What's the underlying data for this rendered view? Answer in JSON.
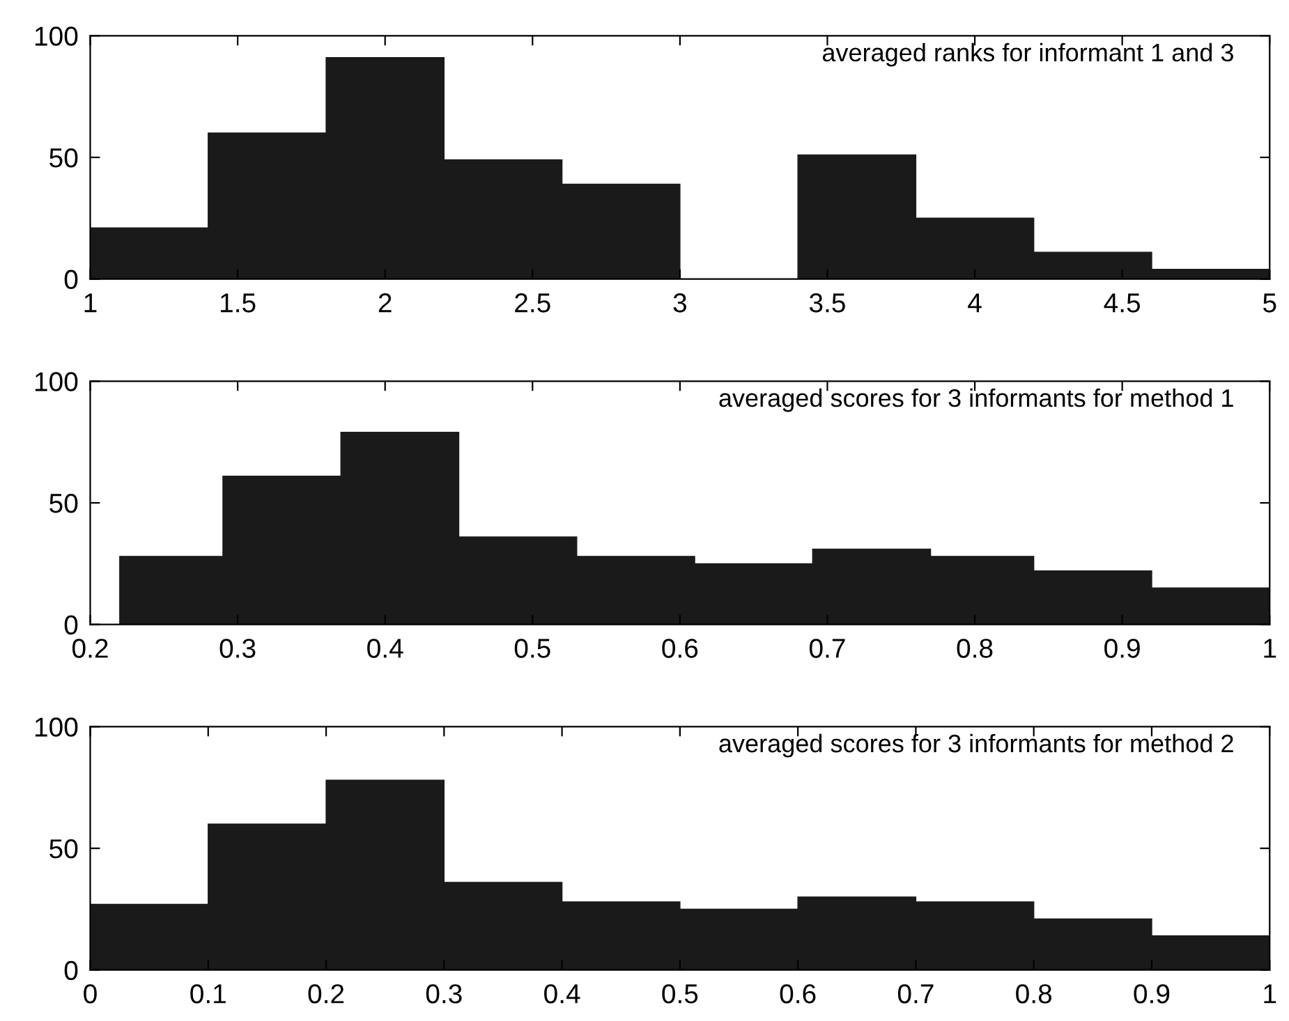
{
  "chart_data": [
    {
      "type": "histogram",
      "bins": [
        1,
        1.4,
        1.8,
        2.2,
        2.6,
        3,
        3.4,
        3.8,
        4.2,
        4.6,
        5
      ],
      "values": [
        21,
        60,
        91,
        49,
        39,
        0,
        51,
        25,
        11,
        4
      ],
      "color": "#1a1a1a",
      "xlim": [
        1,
        5
      ],
      "xticks": [
        1,
        1.5,
        2,
        2.5,
        3,
        3.5,
        4,
        4.5,
        5
      ],
      "ylim": [
        0,
        100
      ],
      "yticks": [
        0,
        50,
        100
      ],
      "annotations": [
        "averaged ranks for informant 1 and 3"
      ],
      "grid": false
    },
    {
      "type": "histogram",
      "bins": [
        0.22,
        0.29,
        0.37,
        0.45,
        0.53,
        0.61,
        0.69,
        0.77,
        0.84,
        0.92,
        1
      ],
      "values": [
        28,
        61,
        79,
        36,
        28,
        25,
        31,
        28,
        22,
        15
      ],
      "color": "#1a1a1a",
      "xlim": [
        0.2,
        1
      ],
      "xticks": [
        0.2,
        0.3,
        0.4,
        0.5,
        0.6,
        0.7,
        0.8,
        0.9,
        1
      ],
      "ylim": [
        0,
        100
      ],
      "yticks": [
        0,
        50,
        100
      ],
      "annotations": [
        "averaged scores for 3 informants for method 1"
      ],
      "grid": false
    },
    {
      "type": "histogram",
      "bins": [
        0,
        0.1,
        0.2,
        0.3,
        0.4,
        0.5,
        0.6,
        0.7,
        0.8,
        0.9,
        1
      ],
      "values": [
        27,
        60,
        78,
        36,
        28,
        25,
        30,
        28,
        21,
        14
      ],
      "color": "#1a1a1a",
      "xlim": [
        0,
        1
      ],
      "xticks": [
        0,
        0.1,
        0.2,
        0.3,
        0.4,
        0.5,
        0.6,
        0.7,
        0.8,
        0.9,
        1
      ],
      "ylim": [
        0,
        100
      ],
      "yticks": [
        0,
        50,
        100
      ],
      "annotations": [
        "averaged scores for 3 informants for method 2"
      ],
      "grid": false
    }
  ]
}
